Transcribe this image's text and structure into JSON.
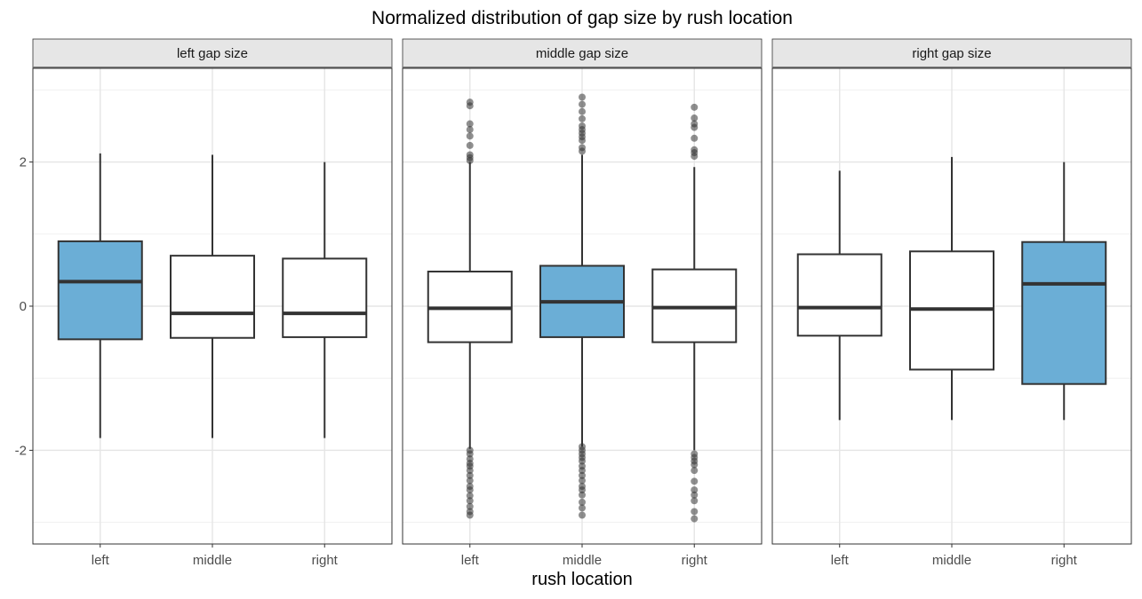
{
  "chart_data": {
    "type": "boxplot",
    "title": "Normalized distribution of gap size by rush location",
    "xlabel": "rush location",
    "ylabel": "",
    "ylim": [
      -3.3,
      3.3
    ],
    "y_ticks": [
      -2,
      0,
      2
    ],
    "categories": [
      "left",
      "middle",
      "right"
    ],
    "highlight_color": "#6baed6",
    "box_fill": "#ffffff",
    "panels": [
      {
        "strip": "left gap size",
        "boxes": [
          {
            "category": "left",
            "highlight": true,
            "q1": -0.46,
            "median": 0.34,
            "q3": 0.9,
            "whisker_low": -1.83,
            "whisker_high": 2.12,
            "outliers": []
          },
          {
            "category": "middle",
            "highlight": false,
            "q1": -0.44,
            "median": -0.1,
            "q3": 0.7,
            "whisker_low": -1.83,
            "whisker_high": 2.1,
            "outliers": []
          },
          {
            "category": "right",
            "highlight": false,
            "q1": -0.43,
            "median": -0.1,
            "q3": 0.66,
            "whisker_low": -1.83,
            "whisker_high": 2.0,
            "outliers": []
          }
        ]
      },
      {
        "strip": "middle gap size",
        "boxes": [
          {
            "category": "left",
            "highlight": false,
            "q1": -0.5,
            "median": -0.03,
            "q3": 0.48,
            "whisker_low": -1.98,
            "whisker_high": 2.0,
            "outliers": [
              2.83,
              2.78,
              2.53,
              2.45,
              2.36,
              2.23,
              2.1,
              2.06,
              2.02,
              -2.0,
              -2.05,
              -2.12,
              -2.18,
              -2.22,
              -2.28,
              -2.35,
              -2.42,
              -2.5,
              -2.55,
              -2.63,
              -2.7,
              -2.78,
              -2.85,
              -2.9
            ]
          },
          {
            "category": "middle",
            "highlight": true,
            "q1": -0.43,
            "median": 0.06,
            "q3": 0.56,
            "whisker_low": -1.95,
            "whisker_high": 2.1,
            "outliers": [
              2.9,
              2.8,
              2.7,
              2.6,
              2.5,
              2.45,
              2.4,
              2.35,
              2.3,
              2.2,
              2.15,
              -1.95,
              -2.0,
              -2.05,
              -2.1,
              -2.15,
              -2.22,
              -2.28,
              -2.35,
              -2.42,
              -2.5,
              -2.55,
              -2.62,
              -2.72,
              -2.8,
              -2.9
            ]
          },
          {
            "category": "right",
            "highlight": false,
            "q1": -0.5,
            "median": -0.02,
            "q3": 0.51,
            "whisker_low": -2.0,
            "whisker_high": 1.93,
            "outliers": [
              2.76,
              2.61,
              2.53,
              2.48,
              2.33,
              2.17,
              2.13,
              2.08,
              -2.05,
              -2.1,
              -2.15,
              -2.2,
              -2.28,
              -2.43,
              -2.55,
              -2.62,
              -2.7,
              -2.85,
              -2.95
            ]
          }
        ]
      },
      {
        "strip": "right gap size",
        "boxes": [
          {
            "category": "left",
            "highlight": false,
            "q1": -0.41,
            "median": -0.02,
            "q3": 0.72,
            "whisker_low": -1.58,
            "whisker_high": 1.88,
            "outliers": []
          },
          {
            "category": "middle",
            "highlight": false,
            "q1": -0.88,
            "median": -0.04,
            "q3": 0.76,
            "whisker_low": -1.58,
            "whisker_high": 2.07,
            "outliers": []
          },
          {
            "category": "right",
            "highlight": true,
            "q1": -1.08,
            "median": 0.31,
            "q3": 0.89,
            "whisker_low": -1.58,
            "whisker_high": 2.0,
            "outliers": []
          }
        ]
      }
    ]
  }
}
